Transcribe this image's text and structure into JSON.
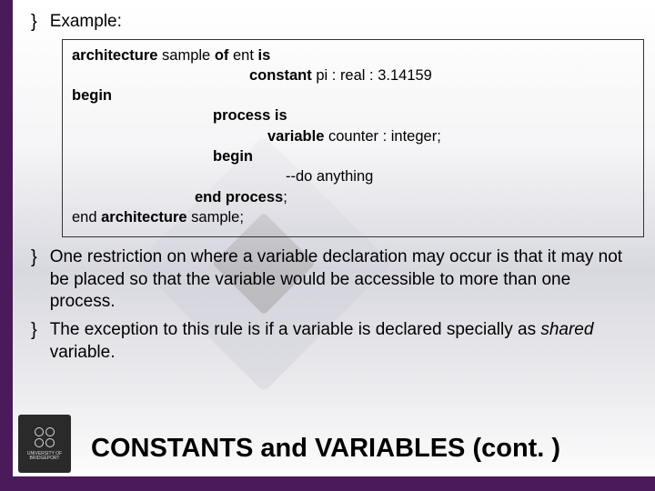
{
  "colors": {
    "accent": "#4a1a5a",
    "text": "#000000",
    "box_border": "#333333"
  },
  "bullets": {
    "mark": "}",
    "example_label": "Example:",
    "point2": "One restriction on where a variable declaration may occur is that it may not be placed so that the variable would be accessible to more than one process.",
    "point3_pre": "The exception to this rule is if a variable is declared specially as ",
    "point3_italic": "shared",
    "point3_post": " variable."
  },
  "code": {
    "l1a": "architecture ",
    "l1b": "sample ",
    "l1c": "of ",
    "l1d": "ent ",
    "l1e": "is",
    "l2a": "constant ",
    "l2b": "pi : real : 3.14159",
    "l3": "begin",
    "l4a": "process ",
    "l4b": "is",
    "l5a": "variable ",
    "l5b": "counter : integer;",
    "l6": "begin",
    "l7": "--do anything",
    "l8a": "end ",
    "l8b": "process",
    "l8c": ";",
    "l9a": "end ",
    "l9b": "architecture ",
    "l9c": "sample;"
  },
  "footer": {
    "title": "CONSTANTS and VARIABLES (cont. )"
  }
}
